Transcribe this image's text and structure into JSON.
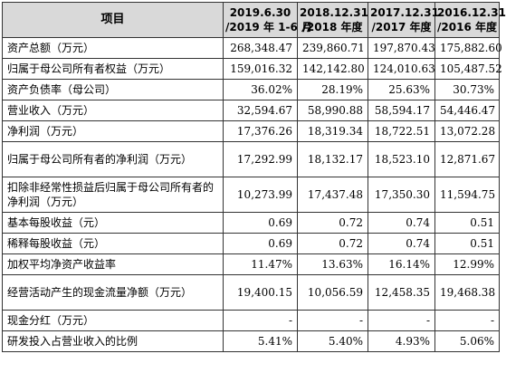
{
  "table": {
    "header": {
      "label": "项目",
      "periods": [
        {
          "line1": "2019.6.30",
          "line2": "/2019 年 1-6 月"
        },
        {
          "line1": "2018.12.31",
          "line2": "/2018 年度"
        },
        {
          "line1": "2017.12.31",
          "line2": "/2017 年度"
        },
        {
          "line1": "2016.12.31",
          "line2": "/2016 年度"
        }
      ]
    },
    "rows": [
      {
        "label": "资产总额（万元）",
        "values": [
          "268,348.47",
          "239,860.71",
          "197,870.43",
          "175,882.60"
        ]
      },
      {
        "label": "归属于母公司所有者权益（万元）",
        "values": [
          "159,016.32",
          "142,142.80",
          "124,010.63",
          "105,487.52"
        ]
      },
      {
        "label": "资产负债率（母公司）",
        "values": [
          "36.02%",
          "28.19%",
          "25.63%",
          "30.73%"
        ]
      },
      {
        "label": "营业收入（万元）",
        "values": [
          "32,594.67",
          "58,990.88",
          "58,594.17",
          "54,446.47"
        ]
      },
      {
        "label": "净利润（万元）",
        "values": [
          "17,376.26",
          "18,319.34",
          "18,722.51",
          "13,072.28"
        ]
      },
      {
        "label": "归属于母公司所有者的净利润（万元）",
        "values": [
          "17,292.99",
          "18,132.17",
          "18,523.10",
          "12,871.67"
        ]
      },
      {
        "label": "扣除非经常性损益后归属于母公司所有者的净利润（万元）",
        "values": [
          "10,273.99",
          "17,437.48",
          "17,350.30",
          "11,594.75"
        ]
      },
      {
        "label": "基本每股收益（元）",
        "values": [
          "0.69",
          "0.72",
          "0.74",
          "0.51"
        ]
      },
      {
        "label": "稀释每股收益（元）",
        "values": [
          "0.69",
          "0.72",
          "0.74",
          "0.51"
        ]
      },
      {
        "label": "加权平均净资产收益率",
        "values": [
          "11.47%",
          "13.63%",
          "16.14%",
          "12.99%"
        ]
      },
      {
        "label": "经营活动产生的现金流量净额（万元）",
        "values": [
          "19,400.15",
          "10,056.59",
          "12,458.35",
          "19,468.38"
        ]
      },
      {
        "label": "现金分红（万元）",
        "values": [
          "-",
          "-",
          "-",
          "-"
        ]
      },
      {
        "label": "研发投入占营业收入的比例",
        "values": [
          "5.41%",
          "5.40%",
          "4.93%",
          "5.06%"
        ]
      }
    ]
  }
}
